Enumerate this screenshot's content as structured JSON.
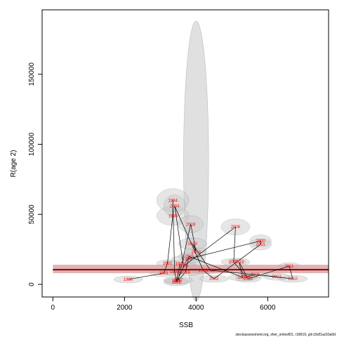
{
  "chart_data": {
    "type": "scatter",
    "title": "",
    "xlabel": "SSB",
    "ylabel": "R(age 2)",
    "xlim": [
      -300,
      7700
    ],
    "ylim": [
      -9000,
      196000
    ],
    "x_ticks": [
      0,
      2000,
      4000,
      6000
    ],
    "y_ticks": [
      0,
      50000,
      100000,
      150000
    ],
    "grid": false,
    "legend": "none",
    "footnote": "stockassessment.org, sher_smlesf01, r18619, git:c9c81ac53a0d",
    "reference_line": {
      "y": 10500,
      "lower": 8000,
      "upper": 14000,
      "color": "#8b0000",
      "band_color": "#d9a0a0"
    },
    "big_ellipse": {
      "x": 4000,
      "y": 88000,
      "rx": 350,
      "ry": 100000
    },
    "points": [
      {
        "year": "1990",
        "ssb": 2100,
        "rec": 3500
      },
      {
        "year": "1991",
        "ssb": 3100,
        "rec": 8000
      },
      {
        "year": "1992",
        "ssb": 3200,
        "rec": 15000
      },
      {
        "year": "1993",
        "ssb": 3350,
        "rec": 49000
      },
      {
        "year": "1994",
        "ssb": 3350,
        "rec": 60000
      },
      {
        "year": "1995",
        "ssb": 3400,
        "rec": 9000
      },
      {
        "year": "1996",
        "ssb": 3450,
        "rec": 2500
      },
      {
        "year": "1997",
        "ssb": 3550,
        "rec": 14500
      },
      {
        "year": "1998",
        "ssb": 3450,
        "rec": 1500
      },
      {
        "year": "1999",
        "ssb": 3750,
        "rec": 18000
      },
      {
        "year": "2000",
        "ssb": 5800,
        "rec": 31000
      },
      {
        "year": "2001",
        "ssb": 5800,
        "rec": 28500
      },
      {
        "year": "2002",
        "ssb": 4500,
        "rec": 4000
      },
      {
        "year": "2003",
        "ssb": 4200,
        "rec": 10000
      },
      {
        "year": "2004",
        "ssb": 3400,
        "rec": 56000
      },
      {
        "year": "2005",
        "ssb": 3650,
        "rec": 13000
      },
      {
        "year": "2006",
        "ssb": 5100,
        "rec": 41000
      },
      {
        "year": "2007",
        "ssb": 5050,
        "rec": 16000
      },
      {
        "year": "2008",
        "ssb": 5400,
        "rec": 5500
      },
      {
        "year": "2009",
        "ssb": 5650,
        "rec": 7000
      },
      {
        "year": "2010",
        "ssb": 6700,
        "rec": 4000
      },
      {
        "year": "2011",
        "ssb": 6600,
        "rec": 13000
      },
      {
        "year": "2012",
        "ssb": 5450,
        "rec": 4000
      },
      {
        "year": "2013",
        "ssb": 5200,
        "rec": 16000
      },
      {
        "year": "2014",
        "ssb": 5300,
        "rec": 5000
      },
      {
        "year": "2015",
        "ssb": 3800,
        "rec": 20000
      },
      {
        "year": "2016",
        "ssb": 3700,
        "rec": 8500
      },
      {
        "year": "2017",
        "ssb": 3500,
        "rec": 3000
      },
      {
        "year": "2018",
        "ssb": 3850,
        "rec": 43000
      },
      {
        "year": "2019",
        "ssb": 4000,
        "rec": 23000
      },
      {
        "year": "2020",
        "ssb": 3900,
        "rec": 29000
      },
      {
        "year": "2021",
        "ssb": 4400,
        "rec": 10000
      },
      {
        "year": "2022",
        "ssb": 6250,
        "rec": 5500
      }
    ]
  }
}
